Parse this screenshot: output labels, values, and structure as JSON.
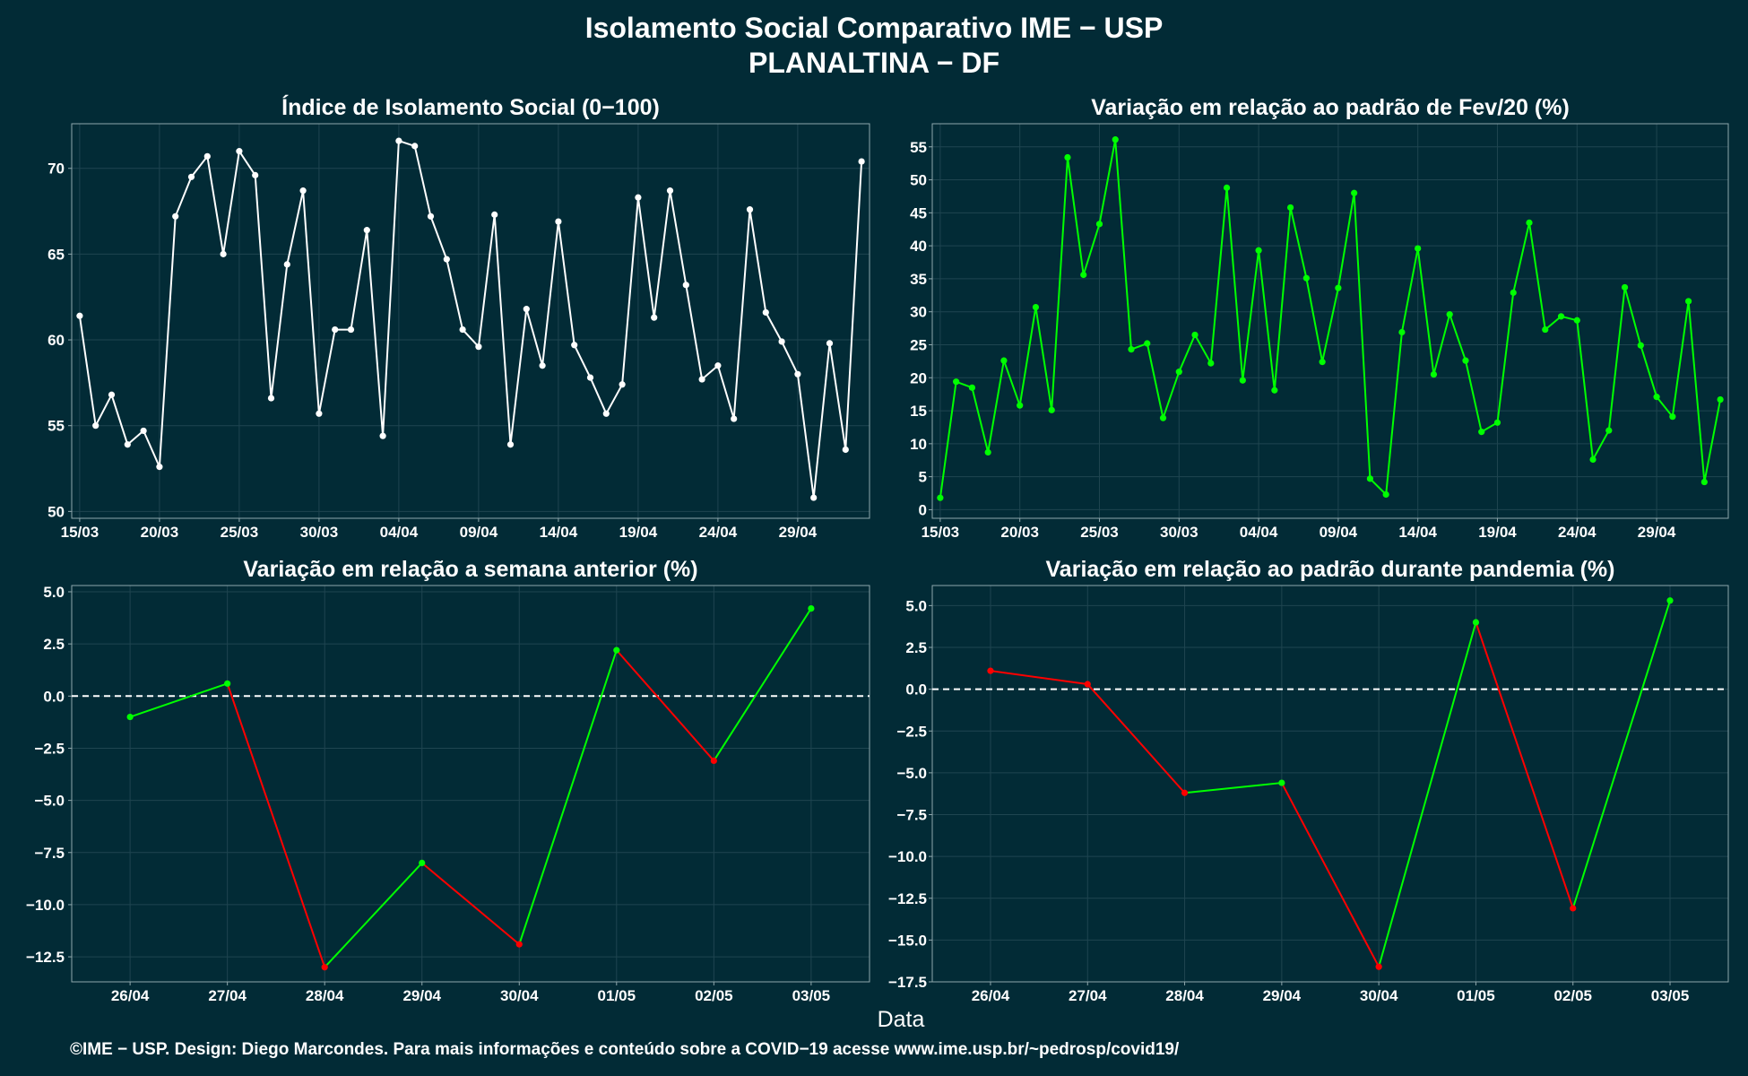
{
  "page": {
    "title_line1": "Isolamento Social Comparativo IME − USP",
    "title_line2": "PLANALTINA − DF",
    "xlabel": "Data",
    "footer": "©IME − USP. Design: Diego Marcondes. Para mais informações e conteúdo sobre a COVID−19 acesse www.ime.usp.br/~pedrosp/covid19/"
  },
  "colors": {
    "background": "#022b36",
    "white_series": "#ffffff",
    "green": "#00ff00",
    "red": "#ff0000",
    "grid": "#1f4550",
    "frame": "#8fa7ac"
  },
  "chart_data": [
    {
      "type": "line",
      "title": "Índice de Isolamento Social (0−100)",
      "x_start": "15/03",
      "x_ticks": [
        "15/03",
        "20/03",
        "25/03",
        "30/03",
        "04/04",
        "09/04",
        "14/04",
        "19/04",
        "24/04",
        "29/04"
      ],
      "ylim": [
        49.6,
        72.6
      ],
      "y_ticks": [
        50,
        55,
        60,
        65,
        70
      ],
      "series": [
        {
          "color": "white",
          "values": [
            61.4,
            55.0,
            56.8,
            53.9,
            54.7,
            52.6,
            67.2,
            69.5,
            70.7,
            65.0,
            71.0,
            69.6,
            56.6,
            64.4,
            68.7,
            55.7,
            60.6,
            60.6,
            66.4,
            54.4,
            71.6,
            71.3,
            67.2,
            64.7,
            60.6,
            59.6,
            67.3,
            53.9,
            61.8,
            58.5,
            66.9,
            59.7,
            57.8,
            55.7,
            57.4,
            68.3,
            61.3,
            68.7,
            63.2,
            57.7,
            58.5,
            55.4,
            67.6,
            61.6,
            59.9,
            58.0,
            50.8,
            59.8,
            53.6,
            70.4
          ]
        }
      ],
      "grid": true
    },
    {
      "type": "line",
      "title": "Variação em relação ao padrão de Fev/20 (%)",
      "x_start": "15/03",
      "x_ticks": [
        "15/03",
        "20/03",
        "25/03",
        "30/03",
        "04/04",
        "09/04",
        "14/04",
        "19/04",
        "24/04",
        "29/04"
      ],
      "ylim": [
        -1.3,
        58.5
      ],
      "y_ticks": [
        0,
        5,
        10,
        15,
        20,
        25,
        30,
        35,
        40,
        45,
        50,
        55
      ],
      "series": [
        {
          "color": "green",
          "values": [
            1.8,
            19.4,
            18.5,
            8.7,
            22.6,
            15.8,
            30.7,
            15.1,
            53.4,
            35.6,
            43.3,
            56.1,
            24.3,
            25.2,
            13.9,
            20.9,
            26.5,
            22.2,
            48.8,
            19.6,
            39.3,
            18.1,
            45.8,
            35.1,
            22.4,
            33.6,
            48.0,
            4.7,
            2.3,
            26.9,
            39.6,
            20.5,
            29.6,
            22.6,
            11.8,
            13.2,
            32.9,
            43.5,
            27.3,
            29.3,
            28.7,
            7.6,
            12.0,
            33.7,
            24.9,
            17.1,
            14.1,
            31.6,
            4.2,
            16.7
          ]
        }
      ],
      "grid": true
    },
    {
      "type": "line",
      "title": "Variação em relação a semana anterior (%)",
      "categories": [
        "26/04",
        "27/04",
        "28/04",
        "29/04",
        "30/04",
        "01/05",
        "02/05",
        "03/05"
      ],
      "values": [
        -1.0,
        0.6,
        -13.0,
        -8.0,
        -11.9,
        2.2,
        -3.1,
        4.2
      ],
      "ylim": [
        -13.7,
        5.3
      ],
      "y_ticks": [
        5.0,
        2.5,
        0.0,
        -2.5,
        -5.0,
        -7.5,
        -10.0,
        -12.5
      ],
      "reference_line": 0,
      "segment_colors": "green when rising, red when falling",
      "grid": true
    },
    {
      "type": "line",
      "title": "Variação em relação ao padrão durante pandemia (%)",
      "categories": [
        "26/04",
        "27/04",
        "28/04",
        "29/04",
        "30/04",
        "01/05",
        "02/05",
        "03/05"
      ],
      "values": [
        1.1,
        0.3,
        -6.2,
        -5.6,
        -16.6,
        4.0,
        -13.1,
        5.3
      ],
      "ylim": [
        -17.5,
        6.2
      ],
      "y_ticks": [
        5.0,
        2.5,
        0.0,
        -2.5,
        -5.0,
        -7.5,
        -10.0,
        -12.5,
        -15.0,
        -17.5
      ],
      "reference_line": 0,
      "segment_colors": "green when rising, red when falling",
      "grid": true
    }
  ]
}
